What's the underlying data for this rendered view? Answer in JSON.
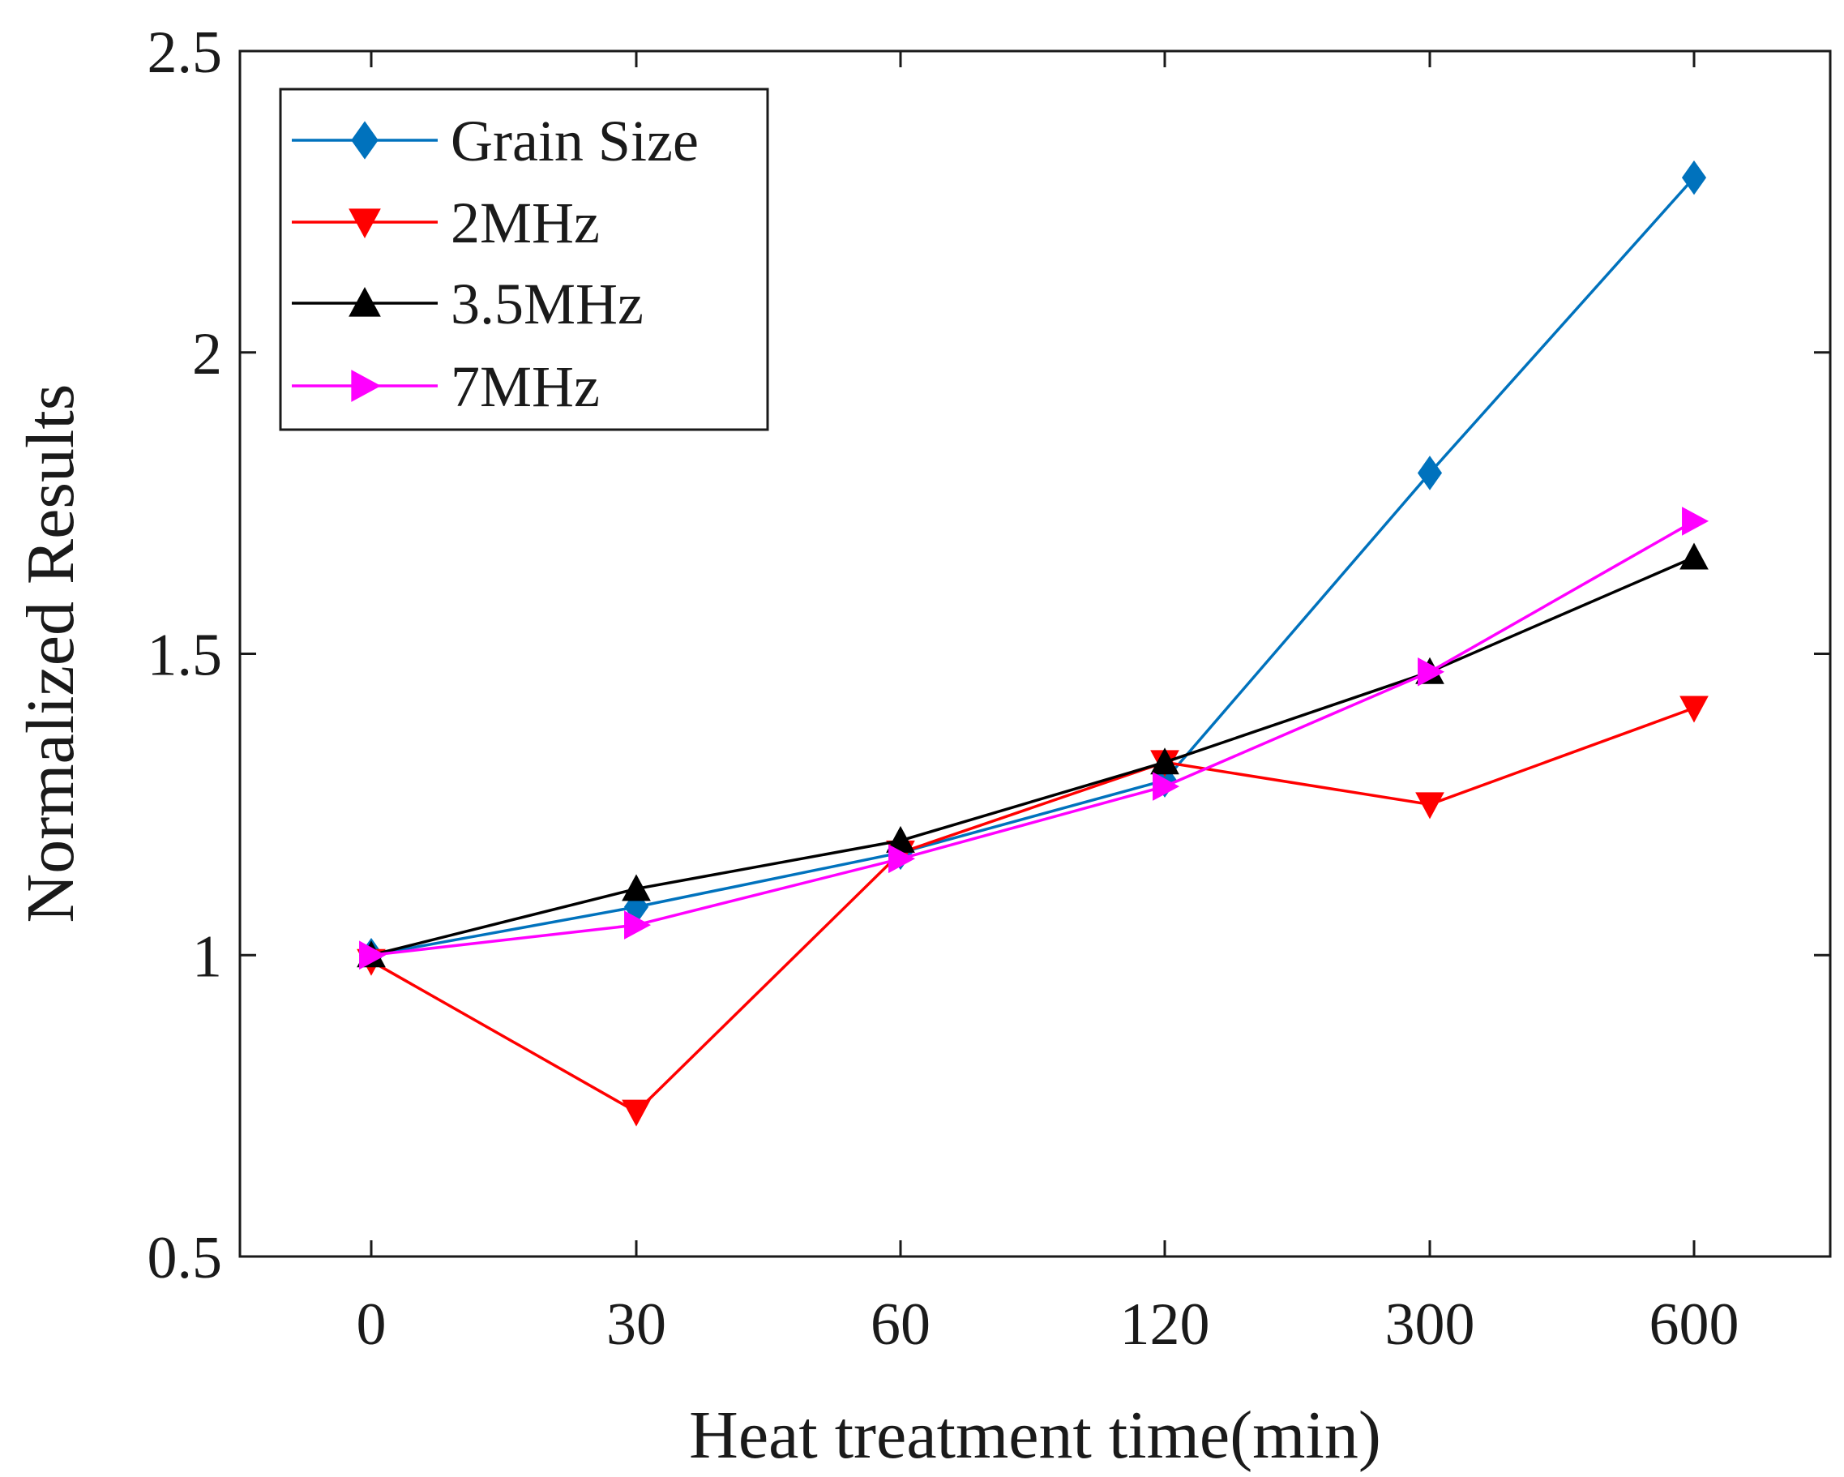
{
  "chart_data": {
    "type": "line",
    "title": "",
    "xlabel": "Heat treatment time(min)",
    "ylabel": "Normalized Results",
    "categories": [
      "0",
      "30",
      "60",
      "120",
      "300",
      "600"
    ],
    "ylim": [
      0.5,
      2.5
    ],
    "yticks": [
      0.5,
      1,
      1.5,
      2,
      2.5
    ],
    "ytick_labels": [
      "0.5",
      "1",
      "1.5",
      "2",
      "2.5"
    ],
    "legend_position": "top-left",
    "series": [
      {
        "name": "Grain Size",
        "color": "#0072BD",
        "marker": "diamond",
        "values": [
          1.0,
          1.08,
          1.17,
          1.29,
          1.8,
          2.29
        ]
      },
      {
        "name": "2MHz",
        "color": "#FF0000",
        "marker": "triangle-down",
        "values": [
          0.99,
          0.74,
          1.17,
          1.32,
          1.25,
          1.41
        ]
      },
      {
        "name": "3.5MHz",
        "color": "#000000",
        "marker": "triangle-up",
        "values": [
          1.0,
          1.11,
          1.19,
          1.32,
          1.47,
          1.66
        ]
      },
      {
        "name": "7MHz",
        "color": "#FF00FF",
        "marker": "triangle-right",
        "values": [
          1.0,
          1.05,
          1.16,
          1.28,
          1.47,
          1.72
        ]
      }
    ]
  }
}
